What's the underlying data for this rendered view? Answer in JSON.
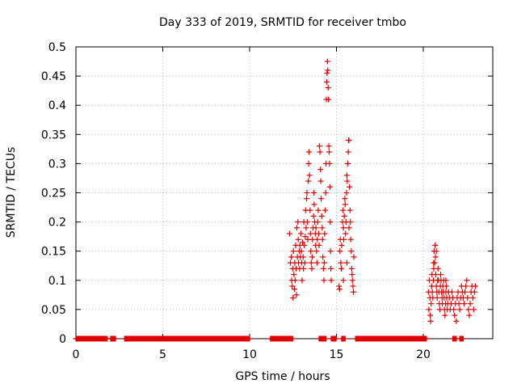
{
  "chart_data": {
    "type": "scatter",
    "title": "Day 333 of 2019, SRMTID for receiver tmbo",
    "xlabel": "GPS time / hours",
    "ylabel": "SRMTID / TECUs",
    "xlim": [
      0,
      24
    ],
    "ylim": [
      0,
      0.5
    ],
    "xticks": [
      0,
      5,
      10,
      15,
      20
    ],
    "yticks": [
      0,
      0.05,
      0.1,
      0.15,
      0.2,
      0.25,
      0.3,
      0.35,
      0.4,
      0.45,
      0.5
    ],
    "grid": true,
    "marker": "+",
    "color": "#e00000",
    "series": [
      {
        "name": "SRMTID",
        "zero_segments": [
          [
            0,
            1.8
          ],
          [
            2.0,
            2.3
          ],
          [
            2.8,
            10.0
          ],
          [
            11.2,
            12.5
          ],
          [
            14.0,
            14.4
          ],
          [
            14.7,
            15.0
          ],
          [
            15.3,
            15.5
          ],
          [
            16.1,
            20.2
          ],
          [
            21.7,
            21.9
          ],
          [
            22.1,
            22.3
          ]
        ],
        "points": [
          [
            12.3,
            0.18
          ],
          [
            12.35,
            0.13
          ],
          [
            12.4,
            0.14
          ],
          [
            12.42,
            0.1
          ],
          [
            12.45,
            0.09
          ],
          [
            12.48,
            0.12
          ],
          [
            12.5,
            0.07
          ],
          [
            12.52,
            0.15
          ],
          [
            12.55,
            0.11
          ],
          [
            12.58,
            0.085
          ],
          [
            12.6,
            0.13
          ],
          [
            12.62,
            0.1
          ],
          [
            12.65,
            0.16
          ],
          [
            12.68,
            0.12
          ],
          [
            12.7,
            0.075
          ],
          [
            12.72,
            0.19
          ],
          [
            12.75,
            0.14
          ],
          [
            12.78,
            0.2
          ],
          [
            12.8,
            0.17
          ],
          [
            12.82,
            0.13
          ],
          [
            12.85,
            0.15
          ],
          [
            12.88,
            0.12
          ],
          [
            12.9,
            0.16
          ],
          [
            12.92,
            0.14
          ],
          [
            12.95,
            0.18
          ],
          [
            12.98,
            0.15
          ],
          [
            13.0,
            0.13
          ],
          [
            13.02,
            0.1
          ],
          [
            13.05,
            0.165
          ],
          [
            13.08,
            0.14
          ],
          [
            13.1,
            0.12
          ],
          [
            13.12,
            0.2
          ],
          [
            13.15,
            0.16
          ],
          [
            13.18,
            0.13
          ],
          [
            13.2,
            0.175
          ],
          [
            13.22,
            0.22
          ],
          [
            13.25,
            0.19
          ],
          [
            13.28,
            0.24
          ],
          [
            13.3,
            0.25
          ],
          [
            13.32,
            0.2
          ],
          [
            13.35,
            0.17
          ],
          [
            13.38,
            0.27
          ],
          [
            13.4,
            0.3
          ],
          [
            13.42,
            0.32
          ],
          [
            13.45,
            0.28
          ],
          [
            13.48,
            0.22
          ],
          [
            13.5,
            0.18
          ],
          [
            13.52,
            0.15
          ],
          [
            13.55,
            0.13
          ],
          [
            13.58,
            0.12
          ],
          [
            13.6,
            0.14
          ],
          [
            13.62,
            0.17
          ],
          [
            13.65,
            0.19
          ],
          [
            13.68,
            0.21
          ],
          [
            13.7,
            0.25
          ],
          [
            13.72,
            0.23
          ],
          [
            13.75,
            0.2
          ],
          [
            13.78,
            0.18
          ],
          [
            13.8,
            0.16
          ],
          [
            13.82,
            0.19
          ],
          [
            13.85,
            0.15
          ],
          [
            13.88,
            0.13
          ],
          [
            13.9,
            0.17
          ],
          [
            13.92,
            0.2
          ],
          [
            13.95,
            0.22
          ],
          [
            13.98,
            0.18
          ],
          [
            14.0,
            0.16
          ],
          [
            14.02,
            0.33
          ],
          [
            14.05,
            0.32
          ],
          [
            14.08,
            0.29
          ],
          [
            14.1,
            0.27
          ],
          [
            14.12,
            0.24
          ],
          [
            14.15,
            0.21
          ],
          [
            14.18,
            0.19
          ],
          [
            14.2,
            0.17
          ],
          [
            14.22,
            0.14
          ],
          [
            14.25,
            0.12
          ],
          [
            14.28,
            0.1
          ],
          [
            14.3,
            0.13
          ],
          [
            14.32,
            0.18
          ],
          [
            14.35,
            0.22
          ],
          [
            14.38,
            0.25
          ],
          [
            14.4,
            0.3
          ],
          [
            14.42,
            0.41
          ],
          [
            14.44,
            0.44
          ],
          [
            14.46,
            0.455
          ],
          [
            14.48,
            0.475
          ],
          [
            14.5,
            0.46
          ],
          [
            14.52,
            0.43
          ],
          [
            14.54,
            0.41
          ],
          [
            14.56,
            0.33
          ],
          [
            14.58,
            0.32
          ],
          [
            14.6,
            0.3
          ],
          [
            14.62,
            0.26
          ],
          [
            14.64,
            0.2
          ],
          [
            14.66,
            0.15
          ],
          [
            14.68,
            0.12
          ],
          [
            14.7,
            0.1
          ],
          [
            15.2,
            0.15
          ],
          [
            15.22,
            0.17
          ],
          [
            15.25,
            0.13
          ],
          [
            15.28,
            0.12
          ],
          [
            15.3,
            0.16
          ],
          [
            15.35,
            0.2
          ],
          [
            15.38,
            0.22
          ],
          [
            15.4,
            0.19
          ],
          [
            15.42,
            0.17
          ],
          [
            15.45,
            0.21
          ],
          [
            15.48,
            0.24
          ],
          [
            15.5,
            0.23
          ],
          [
            15.52,
            0.18
          ],
          [
            15.55,
            0.2
          ],
          [
            15.58,
            0.25
          ],
          [
            15.6,
            0.28
          ],
          [
            15.62,
            0.27
          ],
          [
            15.65,
            0.3
          ],
          [
            15.68,
            0.32
          ],
          [
            15.7,
            0.34
          ],
          [
            15.72,
            0.34
          ],
          [
            15.75,
            0.26
          ],
          [
            15.78,
            0.22
          ],
          [
            15.8,
            0.2
          ],
          [
            15.82,
            0.17
          ],
          [
            15.85,
            0.15
          ],
          [
            15.88,
            0.12
          ],
          [
            15.9,
            0.11
          ],
          [
            15.92,
            0.1
          ],
          [
            15.95,
            0.09
          ],
          [
            15.98,
            0.08
          ],
          [
            16.0,
            0.14
          ],
          [
            15.15,
            0.09
          ],
          [
            15.18,
            0.085
          ],
          [
            15.4,
            0.1
          ],
          [
            15.6,
            0.13
          ],
          [
            15.72,
            0.19
          ],
          [
            20.3,
            0.08
          ],
          [
            20.32,
            0.05
          ],
          [
            20.35,
            0.1
          ],
          [
            20.38,
            0.07
          ],
          [
            20.4,
            0.04
          ],
          [
            20.42,
            0.03
          ],
          [
            20.45,
            0.06
          ],
          [
            20.48,
            0.09
          ],
          [
            20.5,
            0.11
          ],
          [
            20.52,
            0.08
          ],
          [
            20.55,
            0.07
          ],
          [
            20.58,
            0.1
          ],
          [
            20.6,
            0.12
          ],
          [
            20.62,
            0.15
          ],
          [
            20.65,
            0.13
          ],
          [
            20.68,
            0.16
          ],
          [
            20.7,
            0.14
          ],
          [
            20.72,
            0.11
          ],
          [
            20.75,
            0.09
          ],
          [
            20.78,
            0.08
          ],
          [
            20.8,
            0.07
          ],
          [
            20.82,
            0.1
          ],
          [
            20.85,
            0.12
          ],
          [
            20.88,
            0.1
          ],
          [
            20.9,
            0.08
          ],
          [
            20.92,
            0.06
          ],
          [
            20.95,
            0.05
          ],
          [
            20.98,
            0.09
          ],
          [
            21.0,
            0.11
          ],
          [
            21.02,
            0.1
          ],
          [
            21.05,
            0.08
          ],
          [
            21.08,
            0.07
          ],
          [
            21.1,
            0.06
          ],
          [
            21.12,
            0.09
          ],
          [
            21.15,
            0.08
          ],
          [
            21.18,
            0.1
          ],
          [
            21.2,
            0.07
          ],
          [
            21.22,
            0.05
          ],
          [
            21.25,
            0.04
          ],
          [
            21.28,
            0.06
          ],
          [
            21.3,
            0.08
          ],
          [
            21.32,
            0.09
          ],
          [
            21.35,
            0.07
          ],
          [
            21.38,
            0.05
          ],
          [
            21.4,
            0.06
          ],
          [
            21.45,
            0.08
          ],
          [
            21.5,
            0.07
          ],
          [
            21.55,
            0.05
          ],
          [
            21.6,
            0.06
          ],
          [
            21.65,
            0.08
          ],
          [
            21.7,
            0.07
          ],
          [
            21.75,
            0.05
          ],
          [
            21.8,
            0.04
          ],
          [
            21.85,
            0.06
          ],
          [
            21.9,
            0.03
          ],
          [
            21.95,
            0.07
          ],
          [
            22.0,
            0.08
          ],
          [
            22.05,
            0.06
          ],
          [
            22.1,
            0.05
          ],
          [
            22.15,
            0.07
          ],
          [
            22.2,
            0.09
          ],
          [
            22.25,
            0.08
          ],
          [
            22.3,
            0.07
          ],
          [
            22.35,
            0.06
          ],
          [
            22.4,
            0.08
          ],
          [
            22.45,
            0.09
          ],
          [
            22.5,
            0.1
          ],
          [
            22.55,
            0.07
          ],
          [
            22.6,
            0.05
          ],
          [
            22.65,
            0.04
          ],
          [
            22.7,
            0.06
          ],
          [
            22.75,
            0.08
          ],
          [
            22.8,
            0.09
          ],
          [
            22.85,
            0.07
          ],
          [
            22.9,
            0.05
          ],
          [
            22.95,
            0.08
          ],
          [
            23.0,
            0.09
          ],
          [
            20.6,
            0.13
          ],
          [
            20.75,
            0.15
          ],
          [
            21.3,
            0.1
          ]
        ]
      }
    ]
  }
}
